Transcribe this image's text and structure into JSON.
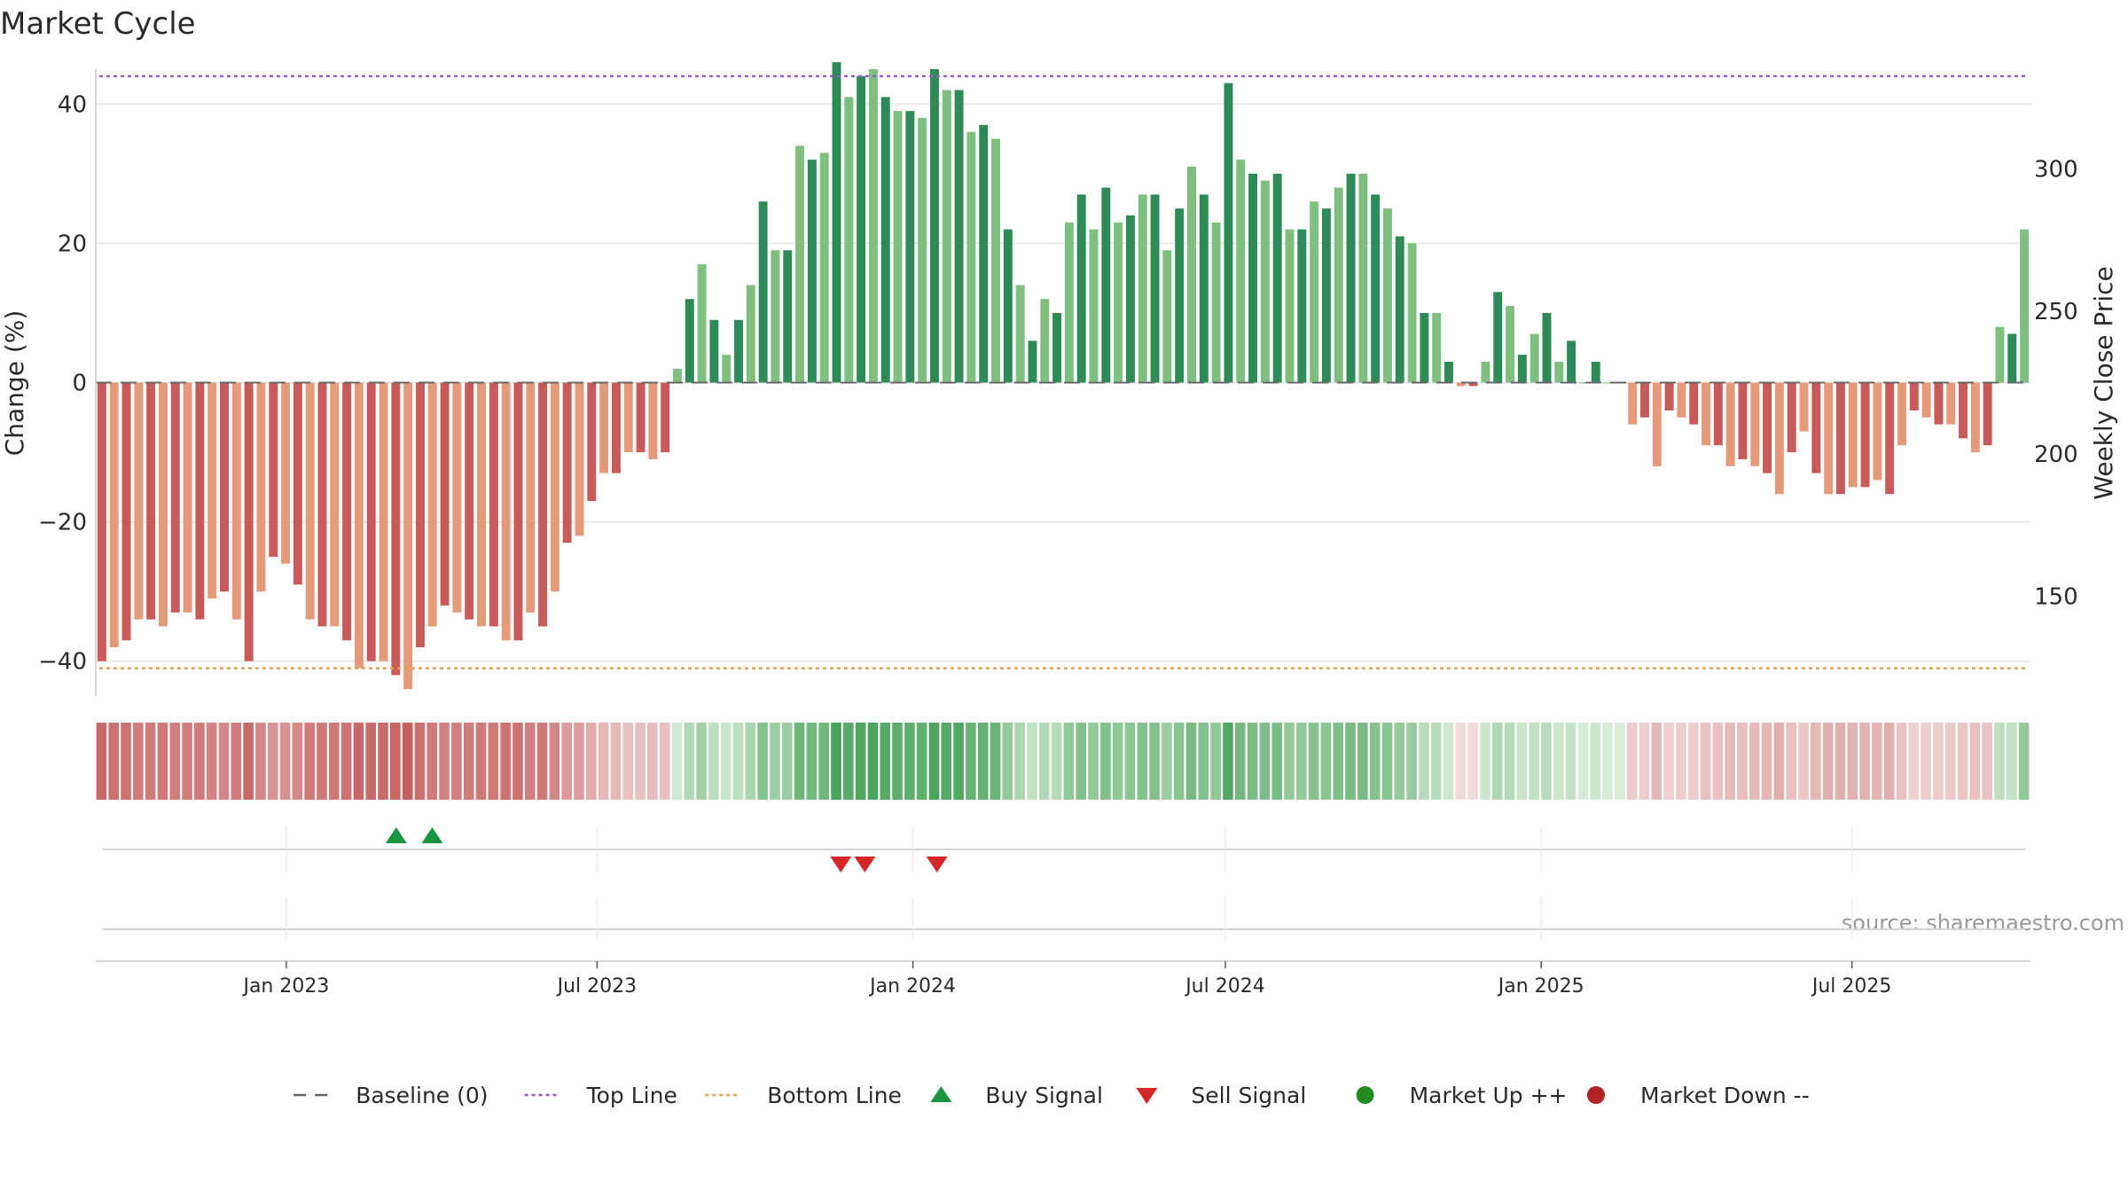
{
  "title": "Market Cycle",
  "source": "source: sharemaestro.com",
  "colors": {
    "up_dark": "#2e8b57",
    "up_light": "#7fbf7f",
    "down_dark": "#c85a5a",
    "down_light": "#e59a7a",
    "top_line": "#9b59d0",
    "bottom_line": "#f0a050",
    "buy": "#1a9641",
    "sell": "#d62728",
    "market_up": "#228b22",
    "market_down": "#b22222",
    "grid": "#e6e6e6",
    "baseline": "#666666"
  },
  "chart_data": {
    "type": "bar",
    "title": "Market Cycle",
    "ylabel": "Change (%)",
    "ylabel_right": "Weekly Close Price",
    "ylim": [
      -50,
      50
    ],
    "yticks": [
      40,
      20,
      0,
      -20,
      -40
    ],
    "ytick_labels": [
      "40",
      "20",
      "0",
      "−20",
      "−40"
    ],
    "right_ylim": [
      115,
      335
    ],
    "right_yticks": [
      300,
      250,
      200,
      150
    ],
    "right_ytick_labels": [
      "300",
      "250",
      "200",
      "150"
    ],
    "top_line": 44,
    "bottom_line": -41,
    "x_start": "2022-09-12",
    "x_end": "2025-10-13",
    "xticks": [
      "2023-01-01",
      "2023-07-01",
      "2024-01-01",
      "2024-07-01",
      "2025-01-01",
      "2025-07-01"
    ],
    "xtick_labels": [
      "Jan 2023",
      "Jul 2023",
      "Jan 2024",
      "Jul 2024",
      "Jan 2025",
      "Jul 2025"
    ],
    "values": [
      -40,
      -38,
      -37,
      -34,
      -34,
      -35,
      -33,
      -33,
      -34,
      -31,
      -30,
      -34,
      -40,
      -30,
      -25,
      -26,
      -29,
      -34,
      -35,
      -35,
      -37,
      -41,
      -40,
      -40,
      -42,
      -44,
      -38,
      -35,
      -32,
      -33,
      -34,
      -35,
      -35,
      -37,
      -37,
      -33,
      -35,
      -30,
      -23,
      -22,
      -17,
      -13,
      -13,
      -10,
      -10,
      -11,
      -10,
      2,
      12,
      17,
      9,
      4,
      9,
      14,
      26,
      19,
      19,
      34,
      32,
      33,
      46,
      41,
      44,
      45,
      41,
      39,
      39,
      38,
      45,
      42,
      42,
      36,
      37,
      35,
      22,
      14,
      6,
      12,
      10,
      23,
      27,
      22,
      28,
      23,
      24,
      27,
      27,
      19,
      25,
      31,
      27,
      23,
      43,
      32,
      30,
      29,
      30,
      22,
      22,
      26,
      25,
      28,
      30,
      30,
      27,
      25,
      21,
      20,
      10,
      10,
      3,
      -0.5,
      -0.5,
      3,
      13,
      11,
      4,
      7,
      10,
      3,
      6,
      0,
      3,
      0,
      0,
      -6,
      -5,
      -12,
      -4,
      -5,
      -6,
      -9,
      -9,
      -12,
      -11,
      -12,
      -13,
      -16,
      -10,
      -7,
      -13,
      -16,
      -16,
      -15,
      -15,
      -14,
      -16,
      -9,
      -4,
      -5,
      -6,
      -6,
      -8,
      -10,
      -9,
      8,
      7,
      22
    ],
    "heat_band": [
      -40,
      -38,
      -37,
      -34,
      -34,
      -35,
      -33,
      -33,
      -34,
      -31,
      -30,
      -34,
      -40,
      -30,
      -25,
      -26,
      -29,
      -34,
      -35,
      -35,
      -37,
      -41,
      -40,
      -40,
      -42,
      -44,
      -38,
      -35,
      -32,
      -33,
      -34,
      -35,
      -35,
      -37,
      -37,
      -33,
      -35,
      -30,
      -23,
      -22,
      -17,
      -13,
      -13,
      -10,
      -10,
      -11,
      -10,
      2,
      12,
      17,
      9,
      4,
      9,
      14,
      26,
      19,
      19,
      34,
      32,
      33,
      46,
      41,
      44,
      45,
      41,
      39,
      39,
      38,
      45,
      42,
      42,
      36,
      37,
      35,
      22,
      14,
      6,
      12,
      10,
      23,
      27,
      22,
      28,
      23,
      24,
      27,
      27,
      19,
      25,
      31,
      27,
      23,
      43,
      32,
      30,
      29,
      30,
      22,
      22,
      26,
      25,
      28,
      30,
      30,
      27,
      25,
      21,
      20,
      10,
      10,
      3,
      -0.5,
      -0.5,
      3,
      13,
      11,
      4,
      7,
      10,
      3,
      6,
      0,
      3,
      0,
      0,
      -6,
      -5,
      -12,
      -4,
      -5,
      -6,
      -9,
      -9,
      -12,
      -11,
      -12,
      -13,
      -16,
      -10,
      -7,
      -13,
      -16,
      -16,
      -15,
      -15,
      -14,
      -16,
      -9,
      -4,
      -5,
      -6,
      -6,
      -8,
      -10,
      -9,
      8,
      7,
      22
    ],
    "buy_signals": [
      "2023-03-06",
      "2023-03-27"
    ],
    "sell_signals": [
      "2023-11-20",
      "2023-12-04",
      "2024-01-15"
    ],
    "legend": [
      {
        "label": "Baseline (0)",
        "marker": "dashed-line",
        "color": "#666666"
      },
      {
        "label": "Top Line",
        "marker": "dotted-line",
        "color": "#9b59d0"
      },
      {
        "label": "Bottom Line",
        "marker": "dotted-line",
        "color": "#f0a050"
      },
      {
        "label": "Buy Signal",
        "marker": "triangle-up",
        "color": "#1a9641"
      },
      {
        "label": "Sell Signal",
        "marker": "triangle-down",
        "color": "#d62728"
      },
      {
        "label": "Market Up ++",
        "marker": "circle",
        "color": "#228b22"
      },
      {
        "label": "Market Down --",
        "marker": "circle",
        "color": "#b22222"
      }
    ],
    "legend_position": "bottom-center",
    "grid": true
  }
}
